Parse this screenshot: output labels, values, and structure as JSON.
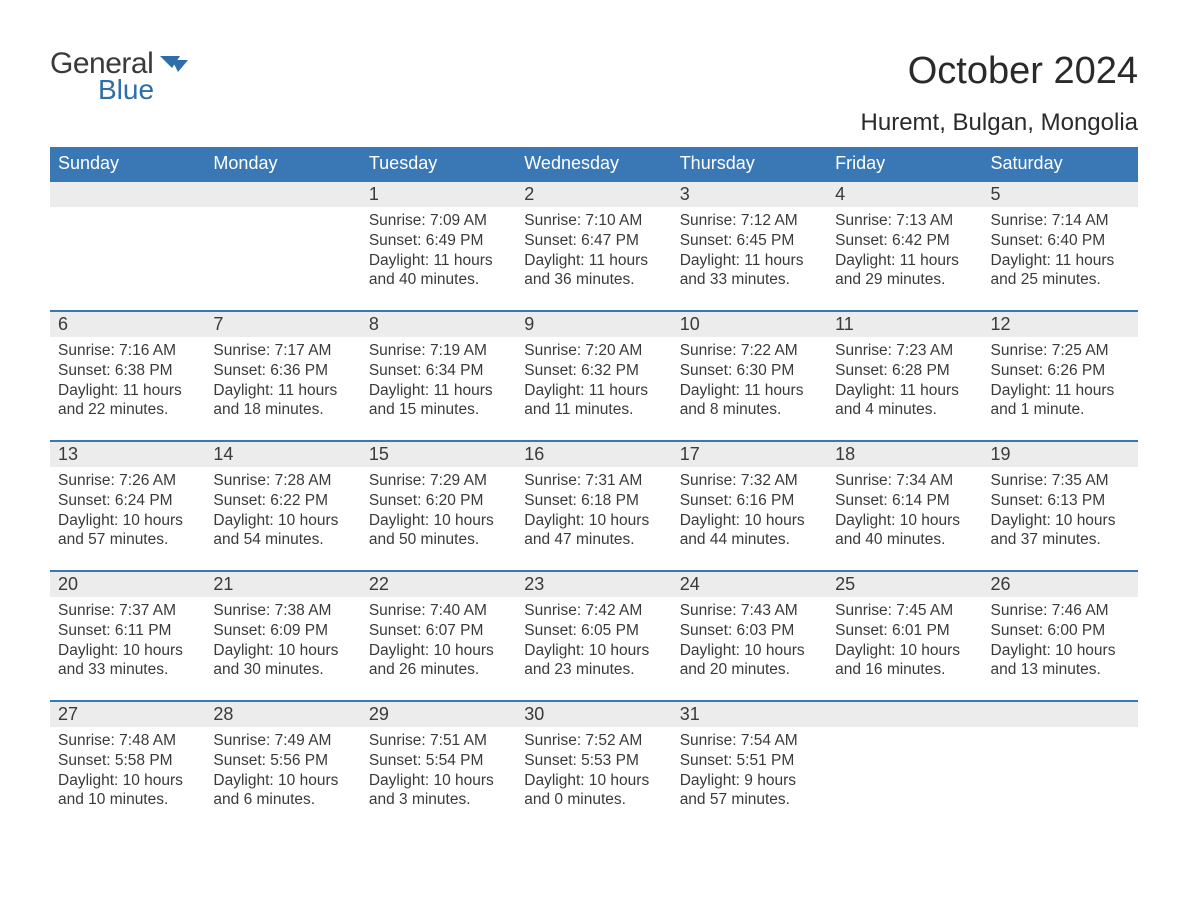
{
  "logo": {
    "general": "General",
    "blue": "Blue"
  },
  "title": "October 2024",
  "location": "Huremt, Bulgan, Mongolia",
  "colors": {
    "header_bg": "#3a78b5",
    "header_fg": "#ffffff",
    "daynum_bg": "#ececec",
    "row_top_border": "#3a78b5",
    "text": "#3a3a3a",
    "logo_blue": "#2f6ea8",
    "page_bg": "#ffffff"
  },
  "typography": {
    "month_title_fontsize": 38,
    "location_fontsize": 24,
    "th_fontsize": 18,
    "daynum_fontsize": 18,
    "body_fontsize": 15.5,
    "logo_fontsize": 30
  },
  "weekdays": [
    "Sunday",
    "Monday",
    "Tuesday",
    "Wednesday",
    "Thursday",
    "Friday",
    "Saturday"
  ],
  "weeks": [
    [
      null,
      null,
      {
        "n": "1",
        "sr": "Sunrise: 7:09 AM",
        "ss": "Sunset: 6:49 PM",
        "d1": "Daylight: 11 hours",
        "d2": "and 40 minutes."
      },
      {
        "n": "2",
        "sr": "Sunrise: 7:10 AM",
        "ss": "Sunset: 6:47 PM",
        "d1": "Daylight: 11 hours",
        "d2": "and 36 minutes."
      },
      {
        "n": "3",
        "sr": "Sunrise: 7:12 AM",
        "ss": "Sunset: 6:45 PM",
        "d1": "Daylight: 11 hours",
        "d2": "and 33 minutes."
      },
      {
        "n": "4",
        "sr": "Sunrise: 7:13 AM",
        "ss": "Sunset: 6:42 PM",
        "d1": "Daylight: 11 hours",
        "d2": "and 29 minutes."
      },
      {
        "n": "5",
        "sr": "Sunrise: 7:14 AM",
        "ss": "Sunset: 6:40 PM",
        "d1": "Daylight: 11 hours",
        "d2": "and 25 minutes."
      }
    ],
    [
      {
        "n": "6",
        "sr": "Sunrise: 7:16 AM",
        "ss": "Sunset: 6:38 PM",
        "d1": "Daylight: 11 hours",
        "d2": "and 22 minutes."
      },
      {
        "n": "7",
        "sr": "Sunrise: 7:17 AM",
        "ss": "Sunset: 6:36 PM",
        "d1": "Daylight: 11 hours",
        "d2": "and 18 minutes."
      },
      {
        "n": "8",
        "sr": "Sunrise: 7:19 AM",
        "ss": "Sunset: 6:34 PM",
        "d1": "Daylight: 11 hours",
        "d2": "and 15 minutes."
      },
      {
        "n": "9",
        "sr": "Sunrise: 7:20 AM",
        "ss": "Sunset: 6:32 PM",
        "d1": "Daylight: 11 hours",
        "d2": "and 11 minutes."
      },
      {
        "n": "10",
        "sr": "Sunrise: 7:22 AM",
        "ss": "Sunset: 6:30 PM",
        "d1": "Daylight: 11 hours",
        "d2": "and 8 minutes."
      },
      {
        "n": "11",
        "sr": "Sunrise: 7:23 AM",
        "ss": "Sunset: 6:28 PM",
        "d1": "Daylight: 11 hours",
        "d2": "and 4 minutes."
      },
      {
        "n": "12",
        "sr": "Sunrise: 7:25 AM",
        "ss": "Sunset: 6:26 PM",
        "d1": "Daylight: 11 hours",
        "d2": "and 1 minute."
      }
    ],
    [
      {
        "n": "13",
        "sr": "Sunrise: 7:26 AM",
        "ss": "Sunset: 6:24 PM",
        "d1": "Daylight: 10 hours",
        "d2": "and 57 minutes."
      },
      {
        "n": "14",
        "sr": "Sunrise: 7:28 AM",
        "ss": "Sunset: 6:22 PM",
        "d1": "Daylight: 10 hours",
        "d2": "and 54 minutes."
      },
      {
        "n": "15",
        "sr": "Sunrise: 7:29 AM",
        "ss": "Sunset: 6:20 PM",
        "d1": "Daylight: 10 hours",
        "d2": "and 50 minutes."
      },
      {
        "n": "16",
        "sr": "Sunrise: 7:31 AM",
        "ss": "Sunset: 6:18 PM",
        "d1": "Daylight: 10 hours",
        "d2": "and 47 minutes."
      },
      {
        "n": "17",
        "sr": "Sunrise: 7:32 AM",
        "ss": "Sunset: 6:16 PM",
        "d1": "Daylight: 10 hours",
        "d2": "and 44 minutes."
      },
      {
        "n": "18",
        "sr": "Sunrise: 7:34 AM",
        "ss": "Sunset: 6:14 PM",
        "d1": "Daylight: 10 hours",
        "d2": "and 40 minutes."
      },
      {
        "n": "19",
        "sr": "Sunrise: 7:35 AM",
        "ss": "Sunset: 6:13 PM",
        "d1": "Daylight: 10 hours",
        "d2": "and 37 minutes."
      }
    ],
    [
      {
        "n": "20",
        "sr": "Sunrise: 7:37 AM",
        "ss": "Sunset: 6:11 PM",
        "d1": "Daylight: 10 hours",
        "d2": "and 33 minutes."
      },
      {
        "n": "21",
        "sr": "Sunrise: 7:38 AM",
        "ss": "Sunset: 6:09 PM",
        "d1": "Daylight: 10 hours",
        "d2": "and 30 minutes."
      },
      {
        "n": "22",
        "sr": "Sunrise: 7:40 AM",
        "ss": "Sunset: 6:07 PM",
        "d1": "Daylight: 10 hours",
        "d2": "and 26 minutes."
      },
      {
        "n": "23",
        "sr": "Sunrise: 7:42 AM",
        "ss": "Sunset: 6:05 PM",
        "d1": "Daylight: 10 hours",
        "d2": "and 23 minutes."
      },
      {
        "n": "24",
        "sr": "Sunrise: 7:43 AM",
        "ss": "Sunset: 6:03 PM",
        "d1": "Daylight: 10 hours",
        "d2": "and 20 minutes."
      },
      {
        "n": "25",
        "sr": "Sunrise: 7:45 AM",
        "ss": "Sunset: 6:01 PM",
        "d1": "Daylight: 10 hours",
        "d2": "and 16 minutes."
      },
      {
        "n": "26",
        "sr": "Sunrise: 7:46 AM",
        "ss": "Sunset: 6:00 PM",
        "d1": "Daylight: 10 hours",
        "d2": "and 13 minutes."
      }
    ],
    [
      {
        "n": "27",
        "sr": "Sunrise: 7:48 AM",
        "ss": "Sunset: 5:58 PM",
        "d1": "Daylight: 10 hours",
        "d2": "and 10 minutes."
      },
      {
        "n": "28",
        "sr": "Sunrise: 7:49 AM",
        "ss": "Sunset: 5:56 PM",
        "d1": "Daylight: 10 hours",
        "d2": "and 6 minutes."
      },
      {
        "n": "29",
        "sr": "Sunrise: 7:51 AM",
        "ss": "Sunset: 5:54 PM",
        "d1": "Daylight: 10 hours",
        "d2": "and 3 minutes."
      },
      {
        "n": "30",
        "sr": "Sunrise: 7:52 AM",
        "ss": "Sunset: 5:53 PM",
        "d1": "Daylight: 10 hours",
        "d2": "and 0 minutes."
      },
      {
        "n": "31",
        "sr": "Sunrise: 7:54 AM",
        "ss": "Sunset: 5:51 PM",
        "d1": "Daylight: 9 hours",
        "d2": "and 57 minutes."
      },
      null,
      null
    ]
  ]
}
